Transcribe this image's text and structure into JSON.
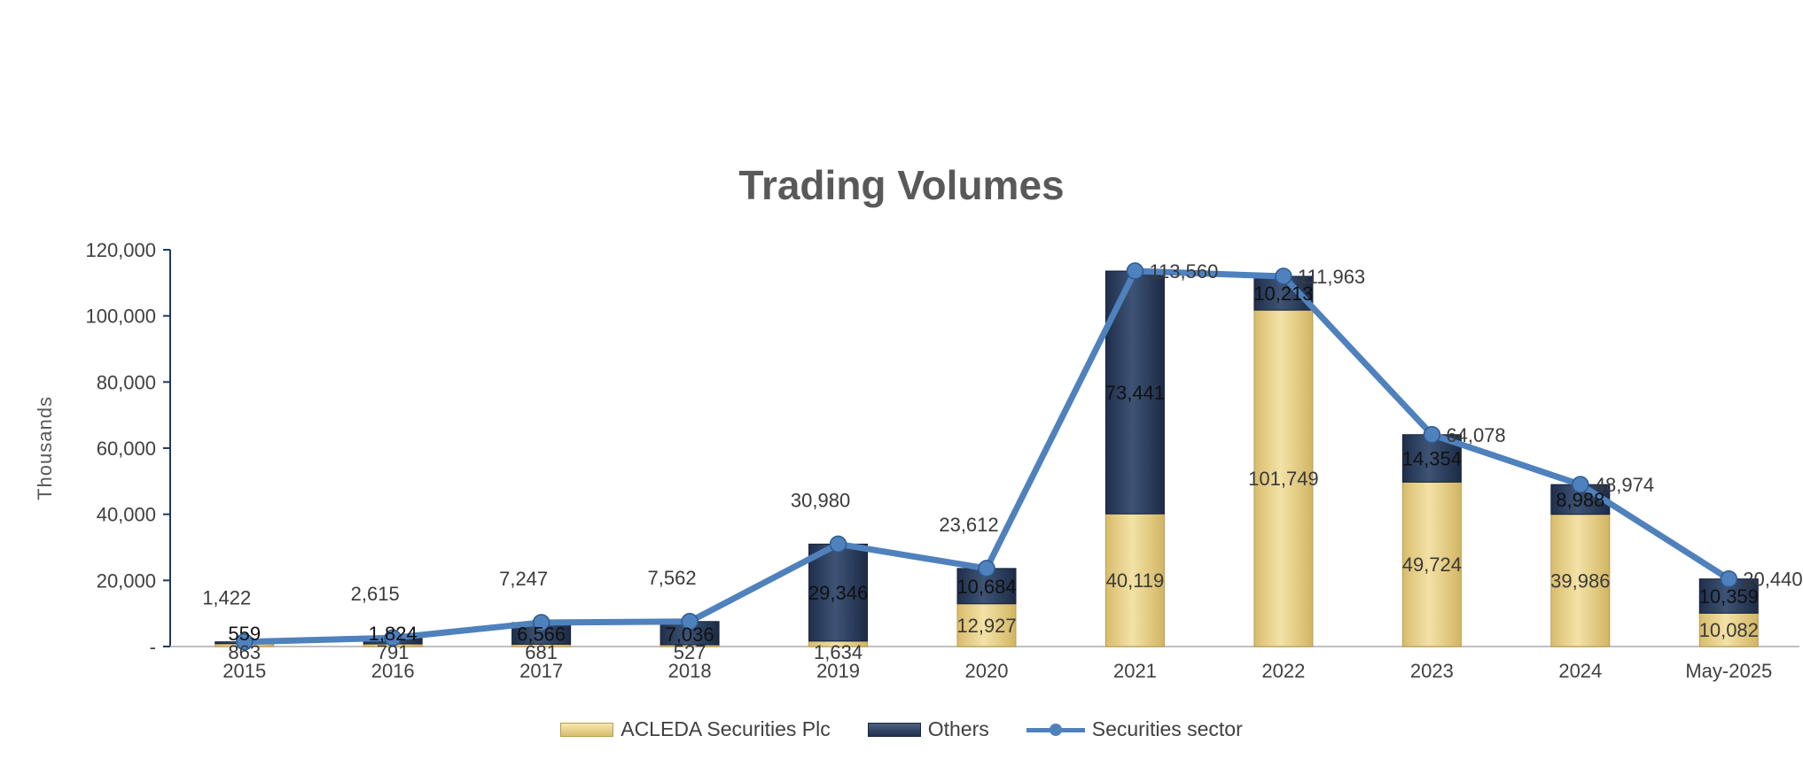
{
  "chart_data": {
    "type": "bar",
    "stacked": true,
    "title": "Trading Volumes",
    "ylabel": "Thousands",
    "xlabel": "",
    "ylim": [
      0,
      120000
    ],
    "yticks": [
      0,
      20000,
      40000,
      60000,
      80000,
      100000,
      120000
    ],
    "ytick_labels": [
      "-",
      "20,000",
      "40,000",
      "60,000",
      "80,000",
      "100,000",
      "120,000"
    ],
    "categories": [
      "2015",
      "2016",
      "2017",
      "2018",
      "2019",
      "2020",
      "2021",
      "2022",
      "2023",
      "2024",
      "May-2025"
    ],
    "series": [
      {
        "name": "ACLEDA Securities Plc",
        "kind": "bar",
        "color": "#e3c97f",
        "values": [
          863,
          791,
          681,
          527,
          1634,
          12927,
          40119,
          101749,
          49724,
          39986,
          10082
        ],
        "labels": [
          "863",
          "791",
          "681",
          "527",
          "1,634",
          "12,927",
          "40,119",
          "101,749",
          "49,724",
          "39,986",
          "10,082"
        ]
      },
      {
        "name": "Others",
        "kind": "bar",
        "color": "#2b3d5e",
        "values": [
          559,
          1824,
          6566,
          7036,
          29346,
          10684,
          73441,
          10213,
          14354,
          8988,
          10359
        ],
        "labels": [
          "559",
          "1,824",
          "6,566",
          "7,036",
          "29,346",
          "10,684",
          "73,441",
          "10,213",
          "14,354",
          "8,988",
          "10,359"
        ]
      },
      {
        "name": "Securities sector",
        "kind": "line",
        "color": "#4f81bd",
        "values": [
          1422,
          2615,
          7247,
          7562,
          30980,
          23612,
          113560,
          111963,
          64078,
          48974,
          20440
        ],
        "labels": [
          "1,422",
          "2,615",
          "7,247",
          "7,562",
          "30,980",
          "23,612",
          "113,560",
          "111,963",
          "64,078",
          "48,974",
          "20,440"
        ]
      }
    ],
    "legend_position": "bottom",
    "grid": false
  }
}
